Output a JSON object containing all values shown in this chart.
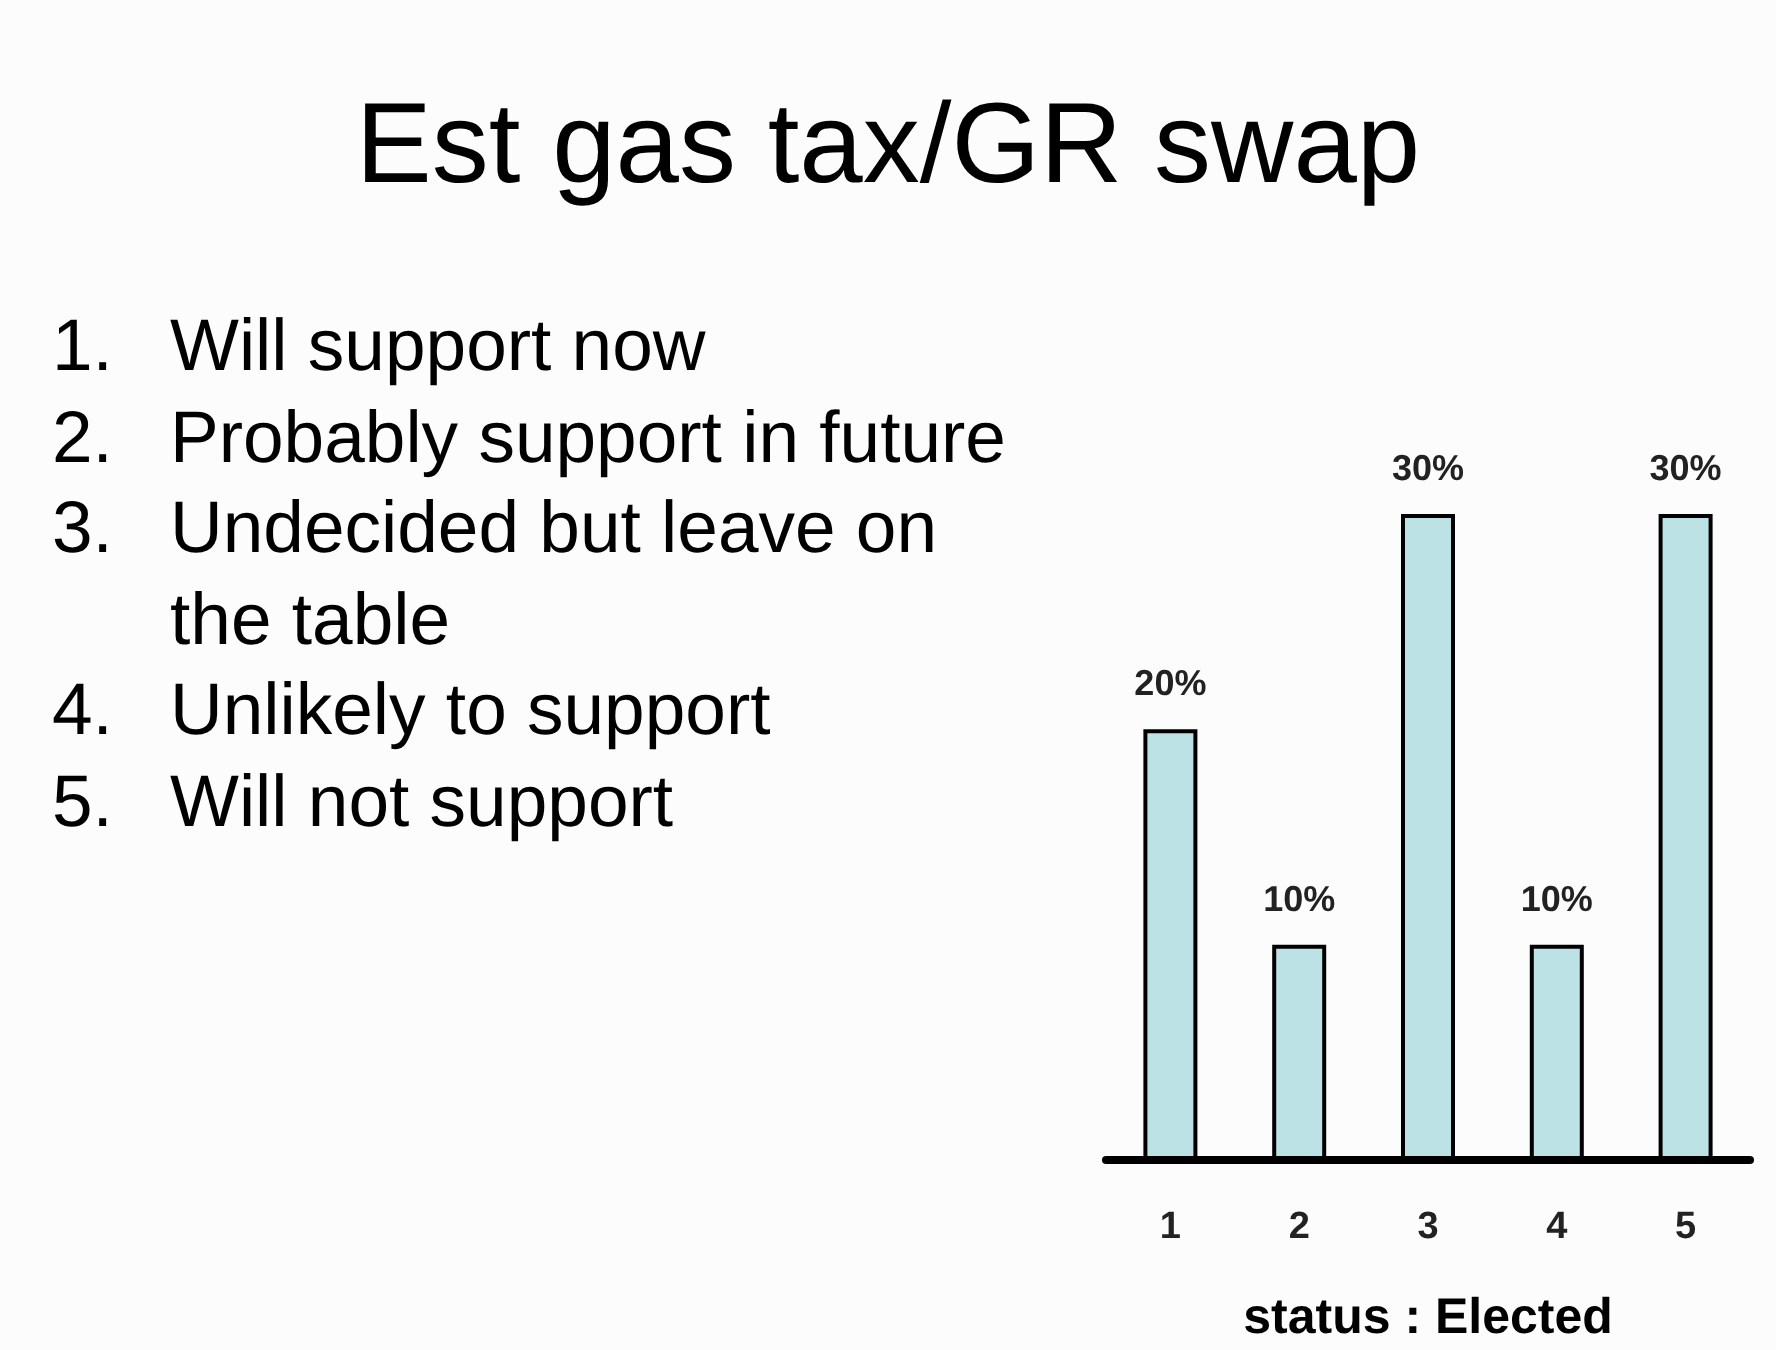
{
  "chart_data": {
    "type": "bar",
    "title": "Est gas tax/GR swap",
    "annotations": [
      "1. Will support now",
      "2. Probably support in future",
      "3. Undecided but leave on the table",
      "4. Unlikely to support",
      "5. Will not support"
    ],
    "categories": [
      "1",
      "2",
      "3",
      "4",
      "5"
    ],
    "values": [
      20,
      10,
      30,
      10,
      30
    ],
    "value_labels": [
      "20%",
      "10%",
      "30%",
      "10%",
      "30%"
    ],
    "color": "#bce2e5",
    "xlabel": "status : Elected"
  }
}
